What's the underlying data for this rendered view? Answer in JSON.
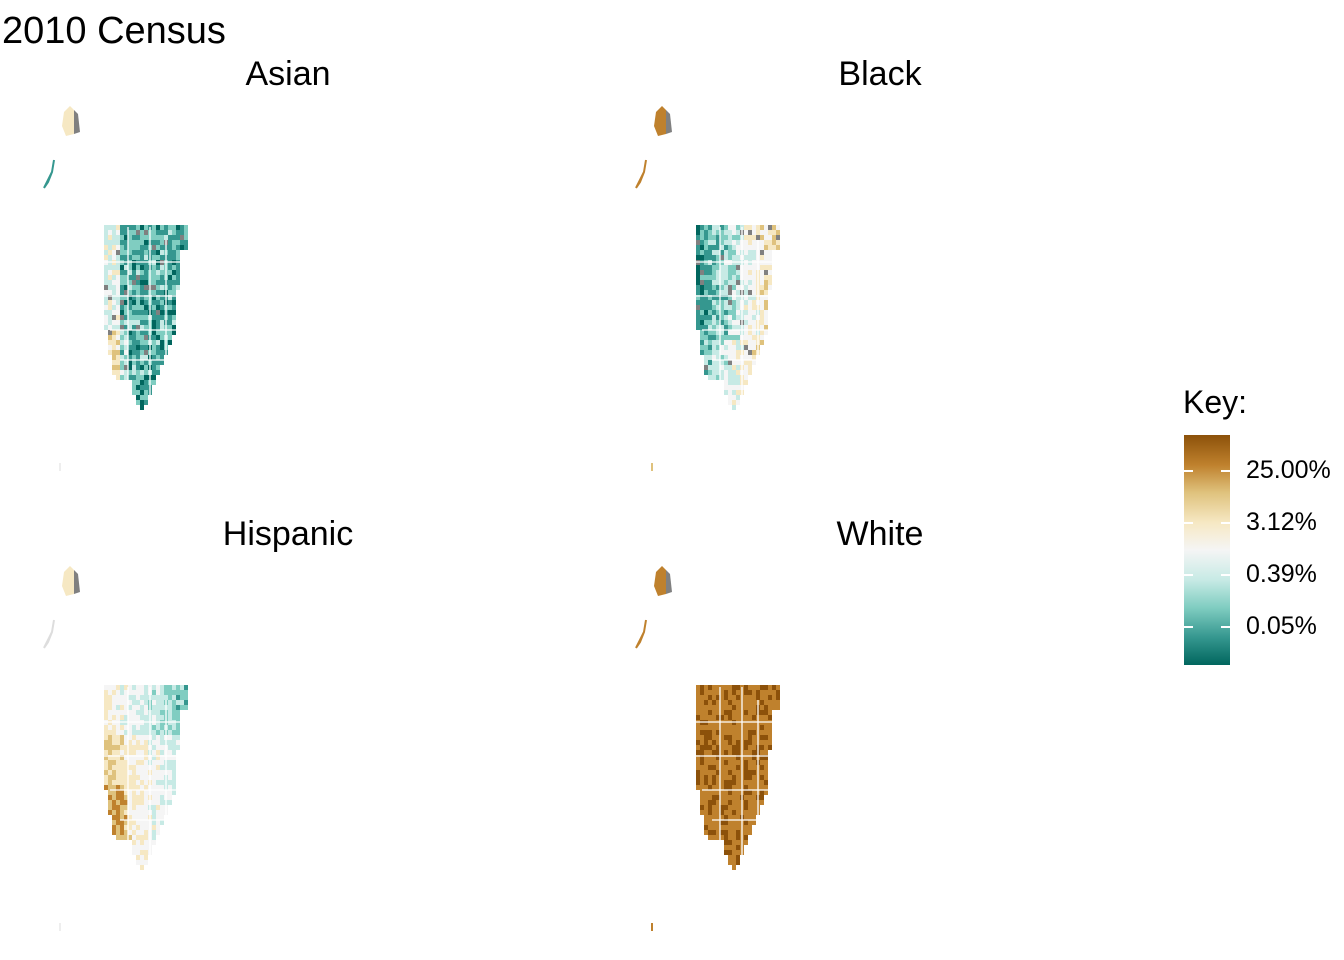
{
  "title": "2010 Census",
  "panels": [
    {
      "label": "Asian",
      "theme": "asian"
    },
    {
      "label": "Black",
      "theme": "black"
    },
    {
      "label": "Hispanic",
      "theme": "hispanic"
    },
    {
      "label": "White",
      "theme": "white"
    }
  ],
  "legend": {
    "title": "Key:",
    "labels": [
      "25.00%",
      "3.12%",
      "0.39%",
      "0.05%"
    ],
    "colors": [
      "#8c510a",
      "#bf812d",
      "#dfc27d",
      "#f6e8c3",
      "#f5f5f5",
      "#c7eae5",
      "#80cdc1",
      "#35978f",
      "#01665e"
    ]
  },
  "colors": {
    "no_data": "#808080",
    "boundary": "#ffffff"
  }
}
